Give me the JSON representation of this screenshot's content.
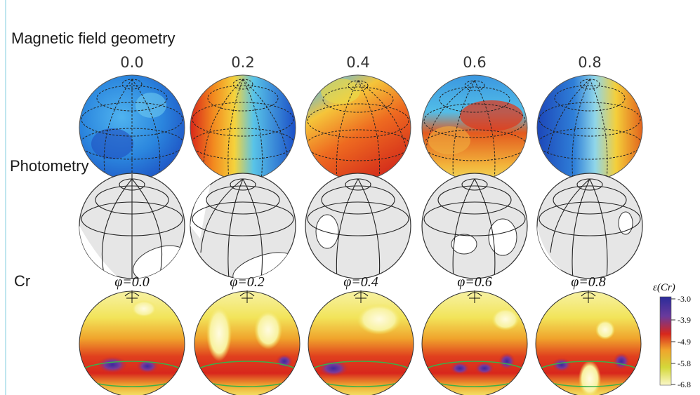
{
  "rows": {
    "magnetic": {
      "label": "Magnetic field geometry"
    },
    "photometry": {
      "label": "Photometry"
    },
    "cr": {
      "label": "Cr"
    }
  },
  "phases_top": [
    "0.0",
    "0.2",
    "0.4",
    "0.6",
    "0.8"
  ],
  "phases_cr": [
    "φ=0.0",
    "φ=0.2",
    "φ=0.4",
    "φ=0.6",
    "φ=0.8"
  ],
  "colorbar": {
    "title": "ε(Cr)",
    "ticks": [
      "-3.0",
      "-3.9",
      "-4.9",
      "-5.8",
      "-6.8"
    ]
  },
  "colors": {
    "jet_blue": "#1f5fd0",
    "jet_red": "#d8261a",
    "cr_purple": "#5a2c8a",
    "cr_yellow": "#f4ec6a",
    "photometry_fill": "#e6e6e6"
  }
}
